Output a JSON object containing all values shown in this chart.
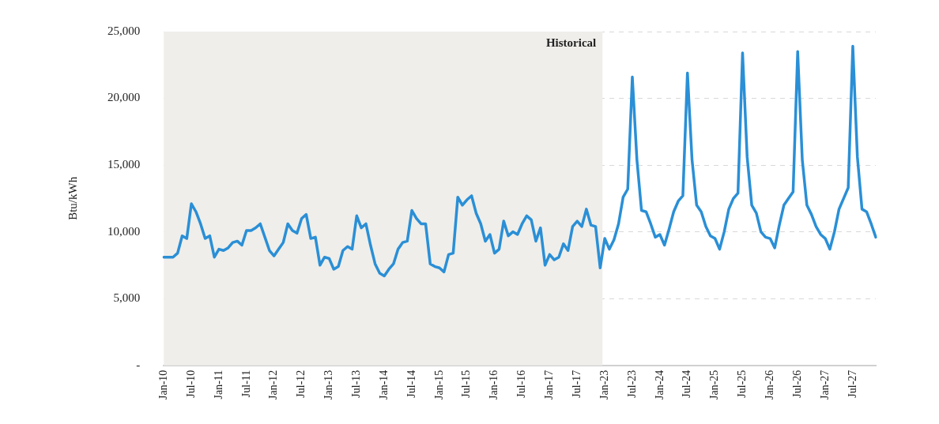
{
  "chart_data": {
    "type": "line",
    "ylabel": "Btu/kWh",
    "categories": [
      "Jan-10",
      null,
      null,
      null,
      null,
      null,
      "Jul-10",
      null,
      null,
      null,
      null,
      null,
      "Jan-11",
      null,
      null,
      null,
      null,
      null,
      "Jul-11",
      null,
      null,
      null,
      null,
      null,
      "Jan-12",
      null,
      null,
      null,
      null,
      null,
      "Jul-12",
      null,
      null,
      null,
      null,
      null,
      "Jan-13",
      null,
      null,
      null,
      null,
      null,
      "Jul-13",
      null,
      null,
      null,
      null,
      null,
      "Jan-14",
      null,
      null,
      null,
      null,
      null,
      "Jul-14",
      null,
      null,
      null,
      null,
      null,
      "Jan-15",
      null,
      null,
      null,
      null,
      null,
      "Jul-15",
      null,
      null,
      null,
      null,
      null,
      "Jan-16",
      null,
      null,
      null,
      null,
      null,
      "Jul-16",
      null,
      null,
      null,
      null,
      null,
      "Jan-17",
      null,
      null,
      null,
      null,
      null,
      "Jul-17",
      null,
      null,
      null,
      null,
      null,
      "Jan-23",
      null,
      null,
      null,
      null,
      null,
      "Jul-23",
      null,
      null,
      null,
      null,
      null,
      "Jan-24",
      null,
      null,
      null,
      null,
      null,
      "Jul-24",
      null,
      null,
      null,
      null,
      null,
      "Jan-25",
      null,
      null,
      null,
      null,
      null,
      "Jul-25",
      null,
      null,
      null,
      null,
      null,
      "Jan-26",
      null,
      null,
      null,
      null,
      null,
      "Jul-26",
      null,
      null,
      null,
      null,
      null,
      "Jan-27",
      null,
      null,
      null,
      null,
      null,
      "Jul-27",
      null,
      null,
      null,
      null,
      null
    ],
    "series": [
      {
        "color": "#2a8fd6",
        "values": [
          8100,
          8100,
          8100,
          8400,
          9700,
          9500,
          12100,
          11500,
          10600,
          9500,
          9700,
          8100,
          8700,
          8600,
          8800,
          9200,
          9300,
          9000,
          10100,
          10100,
          10300,
          10600,
          9600,
          8600,
          8200,
          8700,
          9200,
          10600,
          10100,
          9900,
          11000,
          11300,
          9500,
          9600,
          7500,
          8100,
          8000,
          7200,
          7400,
          8600,
          8900,
          8700,
          11200,
          10300,
          10600,
          9000,
          7600,
          6900,
          6700,
          7200,
          7600,
          8700,
          9200,
          9300,
          11600,
          11000,
          10600,
          10600,
          7600,
          7400,
          7300,
          7000,
          8300,
          8400,
          12600,
          12000,
          12400,
          12700,
          11400,
          10600,
          9300,
          9800,
          8400,
          8700,
          10800,
          9700,
          10000,
          9800,
          10600,
          11200,
          10900,
          9300,
          10300,
          7500,
          8300,
          7900,
          8100,
          9100,
          8600,
          10400,
          10800,
          10400,
          11700,
          10500,
          10400,
          7300,
          9500,
          8700,
          9400,
          10600,
          12600,
          13200,
          21600,
          15400,
          11600,
          11500,
          10600,
          9600,
          9800,
          9000,
          10200,
          11500,
          12300,
          12700,
          21900,
          15400,
          12000,
          11500,
          10400,
          9700,
          9500,
          8700,
          10000,
          11700,
          12500,
          12900,
          23400,
          15600,
          12000,
          11400,
          10000,
          9600,
          9500,
          8800,
          10500,
          12000,
          12500,
          13000,
          23500,
          15400,
          12000,
          11300,
          10400,
          9800,
          9500,
          8700,
          10000,
          11700,
          12500,
          13300,
          23900,
          15600,
          11700,
          11500,
          10600,
          9600
        ]
      }
    ],
    "ylim": [
      0,
      25000
    ],
    "yticks": [
      {
        "value": 0,
        "label": "-"
      },
      {
        "value": 5000,
        "label": "5,000"
      },
      {
        "value": 10000,
        "label": "10,000"
      },
      {
        "value": 15000,
        "label": "15,000"
      },
      {
        "value": 20000,
        "label": "20,000"
      },
      {
        "value": 25000,
        "label": "25,000"
      }
    ],
    "bands": [
      {
        "axis": "x",
        "from": "Jan-10",
        "to": "Jan-23",
        "label": "Historical",
        "color": "#efeeea"
      }
    ],
    "grid": "y",
    "legend": false,
    "marker": "none",
    "line_style": "solid"
  }
}
